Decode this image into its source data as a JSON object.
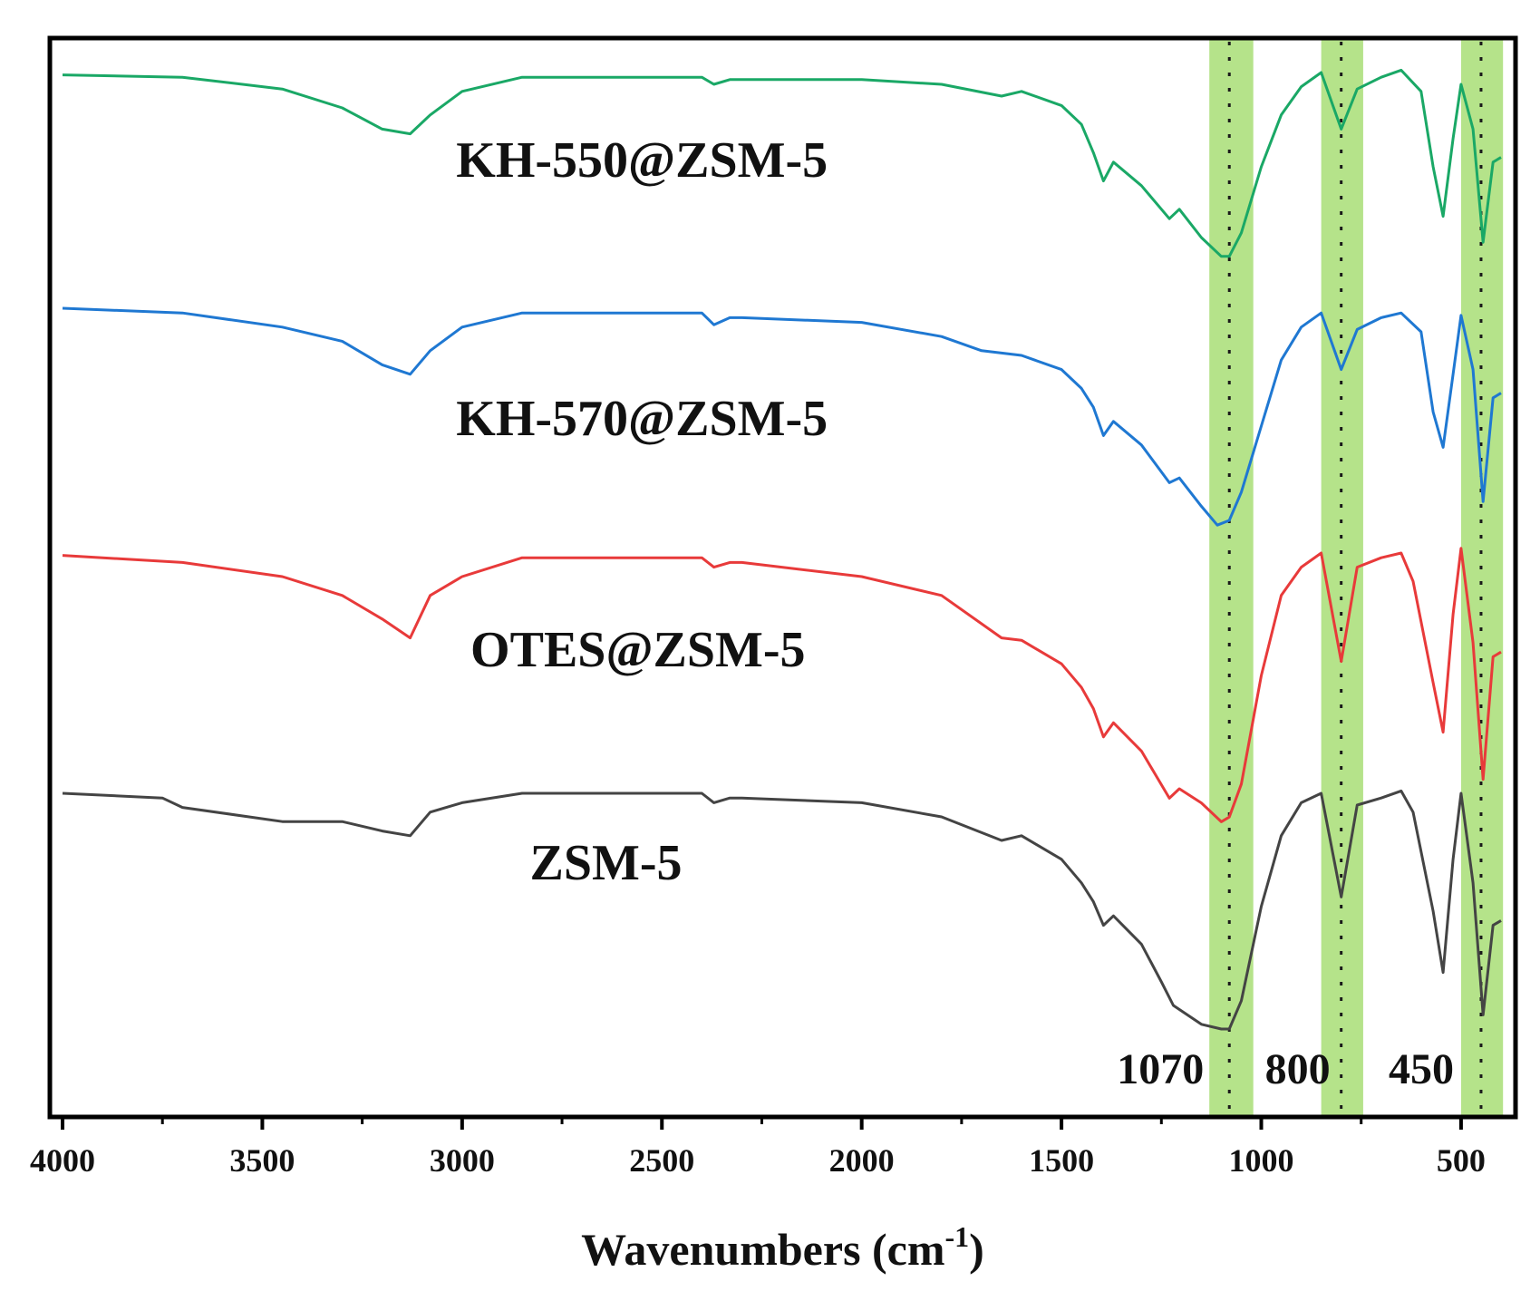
{
  "chart_data": {
    "type": "line",
    "title": "",
    "xlabel": "Wavenumbers (cm",
    "xlabel_superscript": "-1",
    "xlabel_suffix": ")",
    "ylabel": "",
    "x_reversed": true,
    "xlim": [
      4000,
      400
    ],
    "xticks": [
      4000,
      3500,
      3000,
      2500,
      2000,
      1500,
      1000,
      500
    ],
    "y_ticks_shown": false,
    "grid": false,
    "legend": "none",
    "highlight_bands": [
      {
        "label": "1070",
        "center": 1080,
        "from": 1130,
        "to": 1020,
        "color": "#b5e38a"
      },
      {
        "label": "800",
        "center": 800,
        "from": 850,
        "to": 745,
        "color": "#b5e38a"
      },
      {
        "label": "450",
        "center": 450,
        "from": 500,
        "to": 395,
        "color": "#b5e38a"
      }
    ],
    "series": [
      {
        "name": "KH-550@ZSM-5",
        "color": "#1aa866",
        "offset": 3,
        "x": [
          4000,
          3700,
          3450,
          3300,
          3200,
          3130,
          3080,
          3000,
          2850,
          2400,
          2370,
          2330,
          2300,
          2000,
          1800,
          1650,
          1600,
          1500,
          1450,
          1420,
          1395,
          1370,
          1300,
          1230,
          1205,
          1150,
          1100,
          1080,
          1050,
          1000,
          950,
          900,
          850,
          800,
          760,
          700,
          650,
          600,
          570,
          545,
          520,
          500,
          470,
          445,
          420,
          400
        ],
        "y": [
          0.99,
          0.98,
          0.93,
          0.85,
          0.76,
          0.74,
          0.82,
          0.92,
          0.98,
          0.98,
          0.95,
          0.97,
          0.97,
          0.97,
          0.95,
          0.9,
          0.92,
          0.86,
          0.78,
          0.66,
          0.54,
          0.62,
          0.52,
          0.38,
          0.42,
          0.3,
          0.22,
          0.22,
          0.32,
          0.6,
          0.82,
          0.94,
          1.0,
          0.76,
          0.93,
          0.98,
          1.01,
          0.92,
          0.6,
          0.39,
          0.72,
          0.95,
          0.76,
          0.28,
          0.62,
          0.64
        ]
      },
      {
        "name": "KH-570@ZSM-5",
        "color": "#1f78d2",
        "offset": 2,
        "x": [
          4000,
          3700,
          3450,
          3300,
          3200,
          3130,
          3080,
          3000,
          2850,
          2400,
          2370,
          2330,
          2300,
          2000,
          1800,
          1700,
          1650,
          1600,
          1500,
          1450,
          1420,
          1395,
          1370,
          1300,
          1230,
          1205,
          1150,
          1110,
          1080,
          1050,
          1000,
          950,
          900,
          850,
          800,
          760,
          700,
          650,
          600,
          570,
          545,
          520,
          500,
          470,
          445,
          420,
          400
        ],
        "y": [
          1.0,
          0.98,
          0.92,
          0.86,
          0.76,
          0.72,
          0.82,
          0.92,
          0.98,
          0.98,
          0.93,
          0.96,
          0.96,
          0.94,
          0.88,
          0.82,
          0.81,
          0.8,
          0.74,
          0.66,
          0.58,
          0.46,
          0.52,
          0.42,
          0.26,
          0.28,
          0.16,
          0.08,
          0.1,
          0.22,
          0.5,
          0.78,
          0.92,
          0.98,
          0.74,
          0.91,
          0.96,
          0.98,
          0.9,
          0.56,
          0.41,
          0.72,
          0.97,
          0.74,
          0.18,
          0.62,
          0.64
        ]
      },
      {
        "name": "OTES@ZSM-5",
        "color": "#e83a3a",
        "offset": 1,
        "x": [
          4000,
          3700,
          3450,
          3300,
          3200,
          3130,
          3080,
          3000,
          2850,
          2400,
          2370,
          2330,
          2300,
          2000,
          1800,
          1650,
          1600,
          1500,
          1450,
          1420,
          1395,
          1370,
          1300,
          1230,
          1205,
          1150,
          1100,
          1080,
          1050,
          1000,
          950,
          900,
          850,
          800,
          760,
          700,
          650,
          620,
          570,
          545,
          520,
          500,
          470,
          445,
          420,
          400
        ],
        "y": [
          0.99,
          0.96,
          0.9,
          0.82,
          0.72,
          0.64,
          0.82,
          0.9,
          0.98,
          0.98,
          0.94,
          0.96,
          0.96,
          0.9,
          0.82,
          0.64,
          0.63,
          0.53,
          0.43,
          0.34,
          0.22,
          0.28,
          0.16,
          -0.04,
          0.0,
          -0.06,
          -0.14,
          -0.12,
          0.02,
          0.48,
          0.82,
          0.94,
          1.0,
          0.54,
          0.94,
          0.98,
          1.0,
          0.88,
          0.45,
          0.24,
          0.74,
          1.02,
          0.62,
          0.04,
          0.56,
          0.58
        ]
      },
      {
        "name": "ZSM-5",
        "color": "#444444",
        "offset": 0,
        "x": [
          4000,
          3750,
          3700,
          3450,
          3300,
          3200,
          3130,
          3080,
          3000,
          2850,
          2400,
          2370,
          2330,
          2300,
          2000,
          1800,
          1650,
          1600,
          1500,
          1450,
          1420,
          1395,
          1370,
          1300,
          1250,
          1220,
          1150,
          1100,
          1080,
          1050,
          1000,
          950,
          900,
          850,
          800,
          760,
          700,
          650,
          620,
          570,
          545,
          520,
          500,
          470,
          445,
          420,
          400
        ],
        "y": [
          1.0,
          0.98,
          0.94,
          0.88,
          0.88,
          0.84,
          0.82,
          0.92,
          0.96,
          1.0,
          1.0,
          0.96,
          0.98,
          0.98,
          0.96,
          0.9,
          0.8,
          0.82,
          0.72,
          0.62,
          0.54,
          0.44,
          0.48,
          0.36,
          0.2,
          0.1,
          0.02,
          0.0,
          0.0,
          0.12,
          0.52,
          0.82,
          0.96,
          1.0,
          0.56,
          0.95,
          0.98,
          1.01,
          0.92,
          0.5,
          0.24,
          0.72,
          1.0,
          0.62,
          0.06,
          0.44,
          0.46
        ]
      }
    ],
    "series_labels": [
      {
        "text": "KH-550@ZSM-5",
        "at_x": 2550
      },
      {
        "text": "KH-570@ZSM-5",
        "at_x": 2550
      },
      {
        "text": "OTES@ZSM-5",
        "at_x": 2560
      },
      {
        "text": "ZSM-5",
        "at_x": 2640
      }
    ]
  }
}
